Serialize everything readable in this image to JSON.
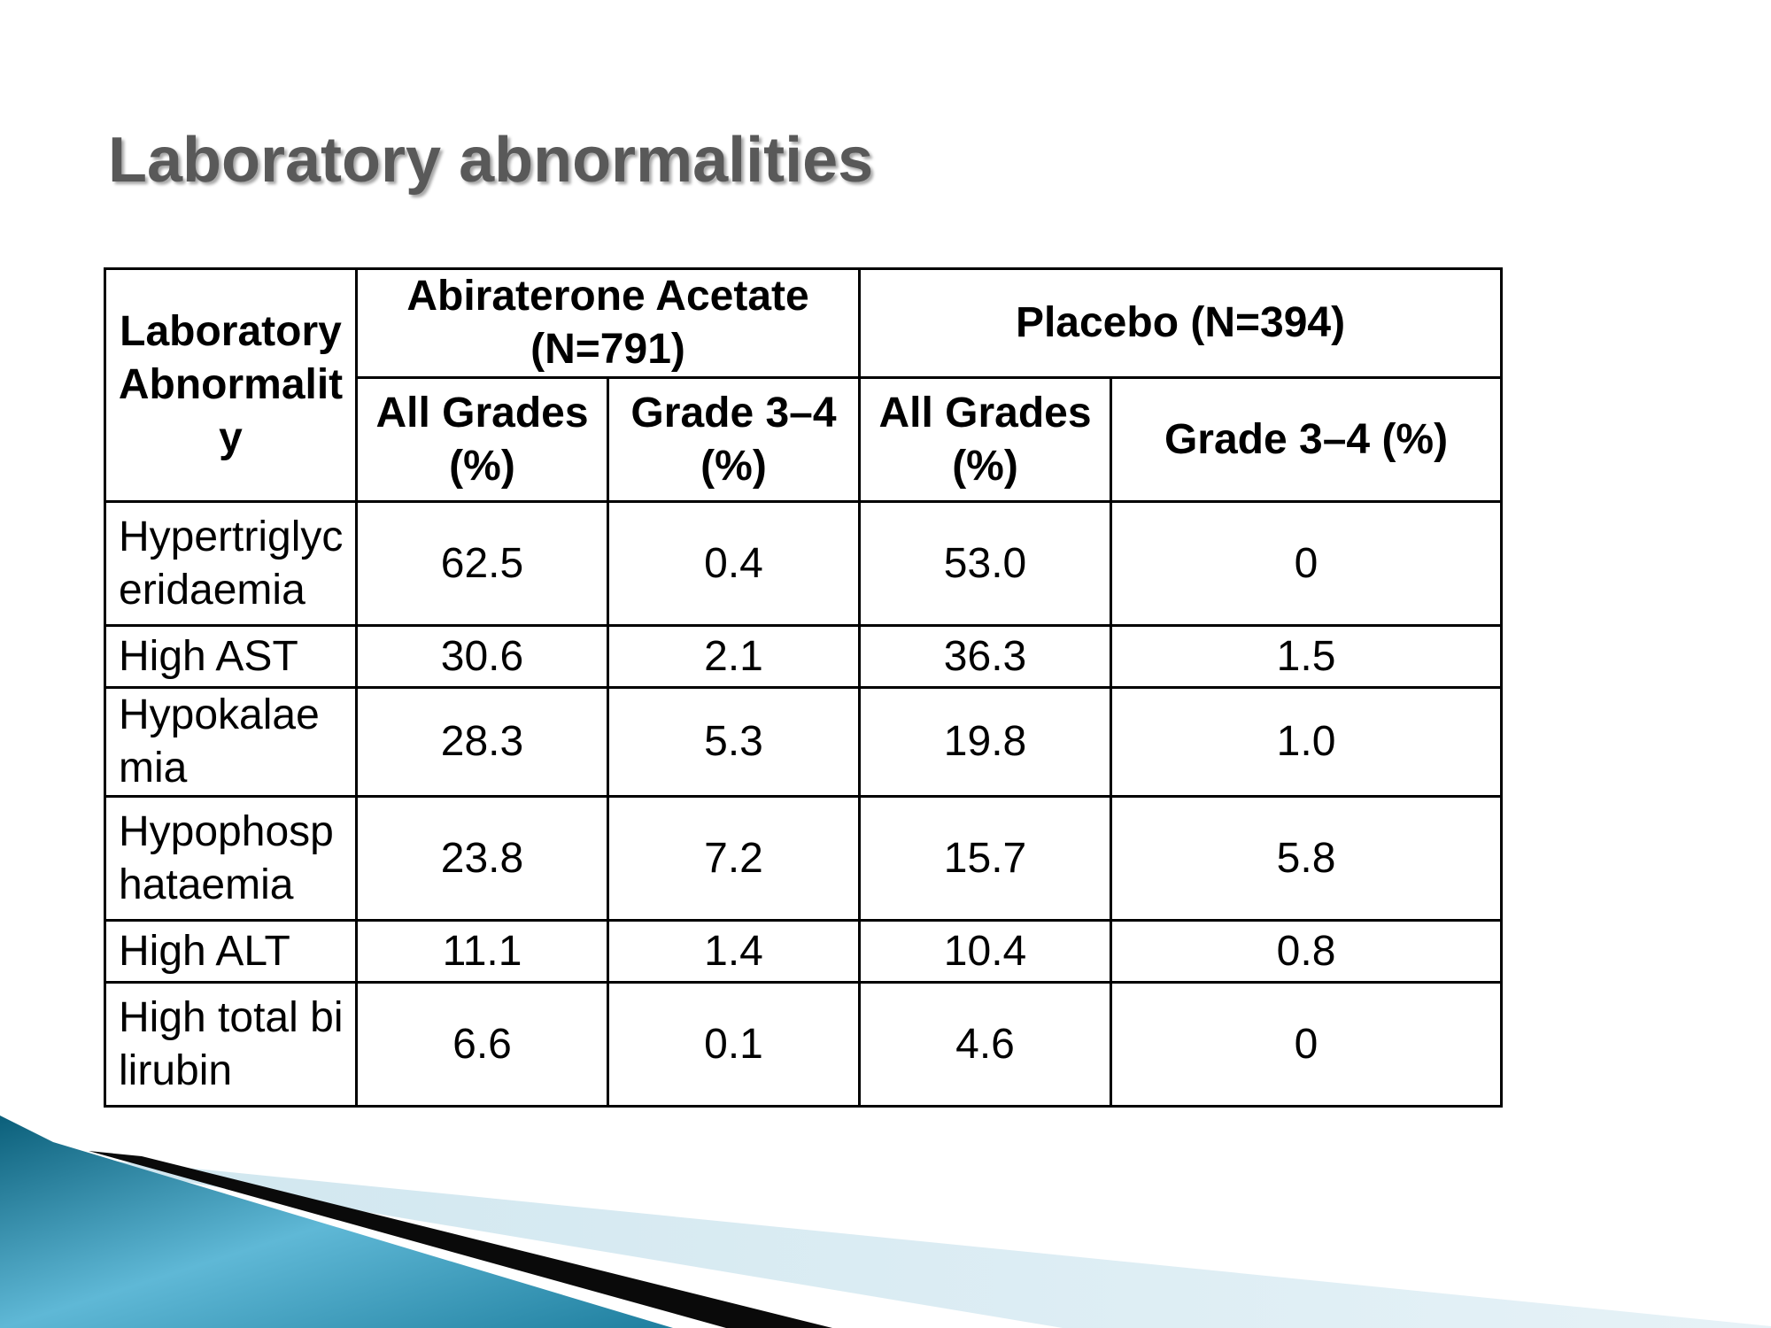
{
  "title": "Laboratory abnormalities",
  "table": {
    "corner_header": "Laboratory Abnormality",
    "groups": [
      {
        "label": "Abiraterone Acetate (N=791)"
      },
      {
        "label": "Placebo (N=394)"
      }
    ],
    "subheaders": [
      "All Grades (%)",
      "Grade 3–4 (%)",
      "All Grades (%)",
      "Grade 3–4 (%)"
    ],
    "rows": [
      {
        "label": "Hypertriglyceridaemia",
        "values": [
          "62.5",
          "0.4",
          "53.0",
          "0"
        ]
      },
      {
        "label": "High AST",
        "values": [
          "30.6",
          "2.1",
          "36.3",
          "1.5"
        ]
      },
      {
        "label": "Hypokalaemia",
        "values": [
          "28.3",
          "5.3",
          "19.8",
          "1.0"
        ]
      },
      {
        "label": "Hypophosphataemia",
        "values": [
          "23.8",
          "7.2",
          "15.7",
          "5.8"
        ]
      },
      {
        "label": "High ALT",
        "values": [
          "11.1",
          "1.4",
          "10.4",
          "0.8"
        ]
      },
      {
        "label": "High total bilirubin",
        "values": [
          "6.6",
          "0.1",
          "4.6",
          "0"
        ]
      }
    ]
  },
  "colors": {
    "title": "#595959",
    "border": "#000000",
    "accent_dark": "#0b5f7a",
    "accent_light": "#5fb8d6",
    "accent_pale": "#d9ebf2"
  }
}
